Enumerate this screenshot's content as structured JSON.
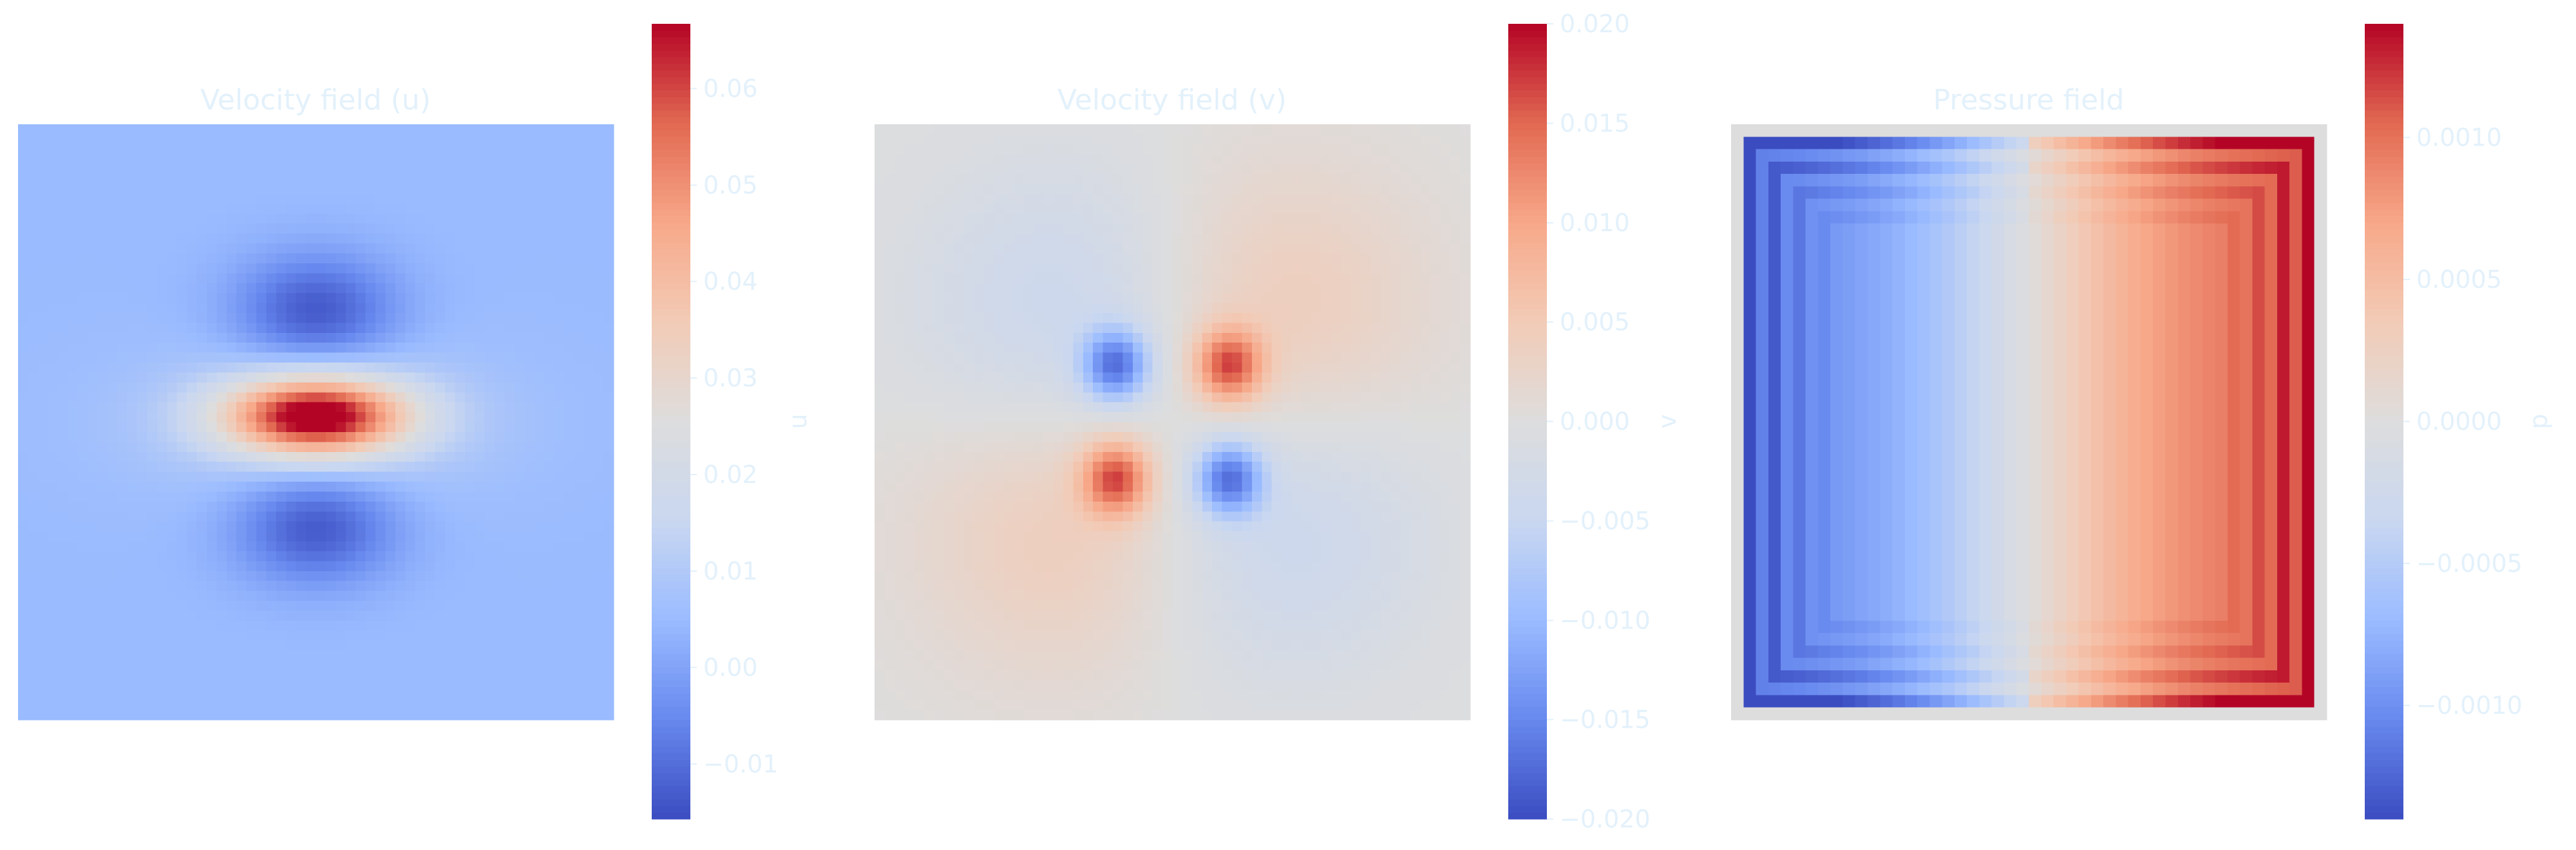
{
  "theme": {
    "text_color": "#e3f1fb",
    "colormap": "coolwarm",
    "colormap_stops": [
      "#3b4cc0",
      "#6788ee",
      "#9abbff",
      "#c9d7f0",
      "#dddddd",
      "#f2cbb7",
      "#f7a889",
      "#e26952",
      "#b40426"
    ]
  },
  "chart_data": [
    {
      "type": "heatmap",
      "title": "Velocity field (u)",
      "field": "u",
      "grid": false,
      "colorbar": {
        "label": "u",
        "vmin": -0.0157,
        "vmax": 0.0667,
        "ticks": [
          -0.01,
          0.0,
          0.01,
          0.02,
          0.03,
          0.04,
          0.05,
          0.06
        ],
        "tick_labels": [
          "−0.01",
          "0.00",
          "0.01",
          "0.02",
          "0.03",
          "0.04",
          "0.05",
          "0.06"
        ]
      },
      "description": "Background near 0.005; strong positive jet (max ≈ 0.066) at the center, negative lobes (min ≈ −0.015) directly above and below."
    },
    {
      "type": "heatmap",
      "title": "Velocity field (v)",
      "field": "v",
      "grid": false,
      "colorbar": {
        "label": "v",
        "vmin": -0.02,
        "vmax": 0.02,
        "ticks": [
          -0.02,
          -0.015,
          -0.01,
          -0.005,
          0.0,
          0.005,
          0.01,
          0.015,
          0.02
        ],
        "tick_labels": [
          "−0.020",
          "−0.015",
          "−0.010",
          "−0.005",
          "0.000",
          "0.005",
          "0.010",
          "0.015",
          "0.020"
        ]
      },
      "description": "Quadrupole pattern: positive at upper-right and lower-left, negative at upper-left and lower-right, peaks ≈ ±0.020."
    },
    {
      "type": "heatmap",
      "title": "Pressure field",
      "field": "p",
      "grid": false,
      "colorbar": {
        "label": "p",
        "vmin": -0.0014,
        "vmax": 0.0014,
        "ticks": [
          -0.001,
          -0.0005,
          0.0,
          0.0005,
          0.001
        ],
        "tick_labels": [
          "−0.0010",
          "−0.0005",
          "0.0000",
          "0.0005",
          "0.0010"
        ]
      },
      "description": "Roughly uniform left-to-right gradient (negative on the left, positive on the right) with striped boundary artifacts and a zero-valued outer border."
    }
  ]
}
